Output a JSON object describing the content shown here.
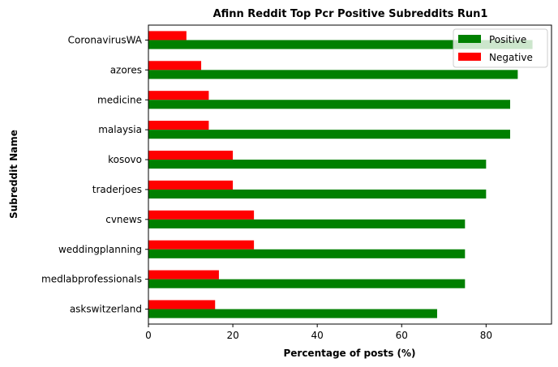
{
  "chart_data": {
    "type": "bar",
    "orientation": "horizontal",
    "title": "Afinn Reddit Top Pcr Positive Subreddits Run1",
    "xlabel": "Percentage of posts (%)",
    "ylabel": "Subreddit Name",
    "xlim": [
      0,
      95.5
    ],
    "xticks": [
      0,
      20,
      40,
      60,
      80
    ],
    "grid": false,
    "legend_position": "top-right",
    "categories": [
      "CoronavirusWA",
      "azores",
      "medicine",
      "malaysia",
      "kosovo",
      "traderjoes",
      "cvnews",
      "weddingplanning",
      "medlabprofessionals",
      "askswitzerland"
    ],
    "series": [
      {
        "name": "Positive",
        "color": "#008000",
        "values": [
          91,
          87.5,
          85.7,
          85.7,
          80,
          80,
          75,
          75,
          75,
          68.4
        ]
      },
      {
        "name": "Negative",
        "color": "#ff0000",
        "values": [
          9,
          12.5,
          14.3,
          14.3,
          20,
          20,
          25,
          25,
          16.7,
          15.8
        ]
      }
    ]
  }
}
